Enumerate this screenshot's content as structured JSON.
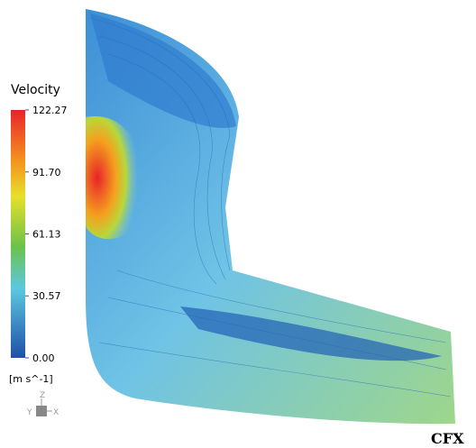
{
  "legend": {
    "title": "Velocity",
    "ticks": [
      {
        "value": 122.27,
        "label": "122.27"
      },
      {
        "value": 91.7,
        "label": "91.70"
      },
      {
        "value": 61.13,
        "label": "61.13"
      },
      {
        "value": 30.57,
        "label": "30.57"
      },
      {
        "value": 0,
        "label": "0.00"
      }
    ],
    "unit": "[m s^-1]"
  },
  "axes_triad": {
    "x": "X",
    "y": "Y",
    "z": "Z"
  },
  "brand": "CFX"
}
